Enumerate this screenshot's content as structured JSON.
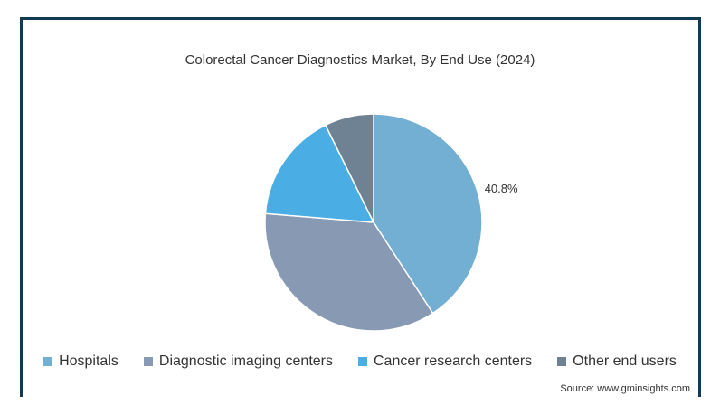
{
  "chart_data": {
    "type": "pie",
    "title": "Colorectal Cancer Diagnostics Market, By End Use (2024)",
    "categories": [
      "Hospitals",
      "Diagnostic imaging centers",
      "Cancer research centers",
      "Other end users"
    ],
    "values": [
      40.8,
      35.5,
      16.4,
      7.3
    ],
    "data_labels": [
      "40.8%",
      "",
      "",
      ""
    ],
    "colors": [
      "#72afd3",
      "#8799b3",
      "#4aaee5",
      "#6e8294"
    ],
    "legend_position": "bottom"
  },
  "source": "Source: www.gminsights.com"
}
